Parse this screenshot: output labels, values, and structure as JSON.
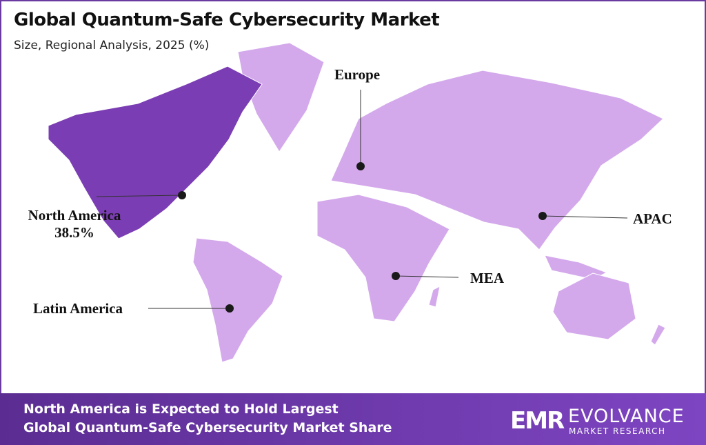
{
  "header": {
    "title": "Global Quantum-Safe Cybersecurity Market",
    "subtitle": "Size, Regional Analysis, 2025 (%)"
  },
  "map": {
    "highlight_color": "#7b3db3",
    "base_color": "#d4a9ec",
    "regions": [
      {
        "name": "North America",
        "value": "38.5%",
        "highlighted": true
      },
      {
        "name": "Europe"
      },
      {
        "name": "APAC"
      },
      {
        "name": "MEA"
      },
      {
        "name": "Latin America"
      }
    ]
  },
  "banner": {
    "line1": "North America is Expected to Hold Largest",
    "line2": "Global Quantum-Safe Cybersecurity Market Share"
  },
  "logo": {
    "mark": "EMR",
    "name": "EVOLVANCE",
    "sub": "MARKET RESEARCH"
  }
}
